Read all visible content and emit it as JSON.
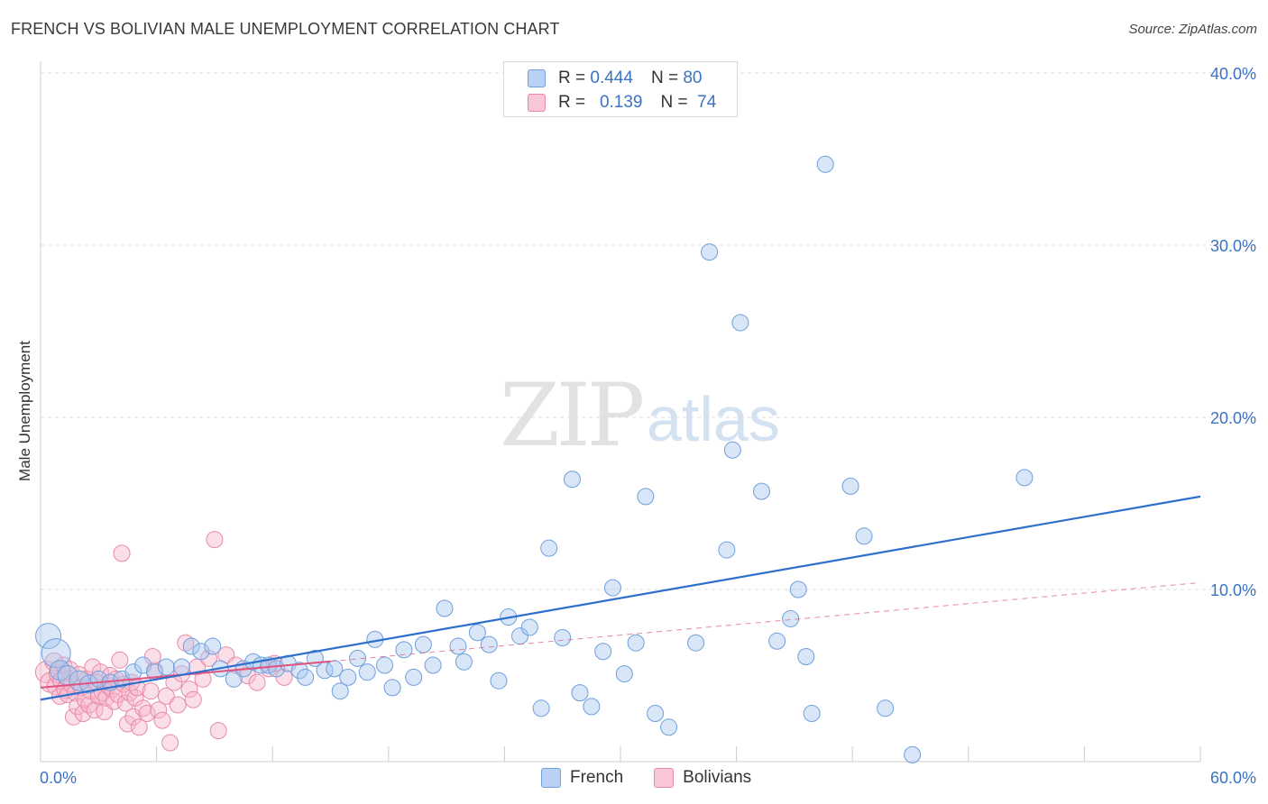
{
  "header": {
    "title": "FRENCH VS BOLIVIAN MALE UNEMPLOYMENT CORRELATION CHART",
    "source": "Source: ZipAtlas.com"
  },
  "watermark": {
    "zip": "ZIP",
    "atlas": "atlas"
  },
  "legend": {
    "french": {
      "r_label": "R =",
      "r_value": "0.444",
      "n_label": "N =",
      "n_value": "80"
    },
    "bolivians": {
      "r_label": "R =",
      "r_value": "0.139",
      "n_label": "N =",
      "n_value": "74"
    }
  },
  "bottom_legend": {
    "french": "French",
    "bolivians": "Bolivians"
  },
  "colors": {
    "french_fill": "#a9c7ef",
    "french_stroke": "#6f9fdc",
    "french_line": "#2f6fcc",
    "bolivian_fill": "#f7b8cb",
    "bolivian_stroke": "#e88aa8",
    "bolivian_line": "#e0557f",
    "grid": "#dddddd",
    "tick_label": "#3b72c4"
  },
  "chart_data": {
    "type": "scatter",
    "title": "FRENCH VS BOLIVIAN MALE UNEMPLOYMENT CORRELATION CHART",
    "xlabel": "",
    "ylabel": "Male Unemployment",
    "xlim": [
      0,
      60
    ],
    "ylim": [
      0,
      40
    ],
    "x_tick_labels": [
      "0.0%",
      "60.0%"
    ],
    "y_ticks": [
      10,
      20,
      30,
      40
    ],
    "y_tick_labels": [
      "10.0%",
      "20.0%",
      "30.0%",
      "40.0%"
    ],
    "series": [
      {
        "name": "French",
        "r": 0.444,
        "n": 80,
        "trend": {
          "x0": 0,
          "y0": 3.6,
          "x1": 60,
          "y1": 15.4
        },
        "points": [
          [
            0.4,
            7.3,
            14
          ],
          [
            0.8,
            6.3,
            16
          ],
          [
            1.0,
            5.3,
            11
          ],
          [
            1.4,
            5.0,
            11
          ],
          [
            2.0,
            4.7,
            11
          ],
          [
            2.5,
            4.5,
            10
          ],
          [
            3.0,
            4.8,
            9
          ],
          [
            3.6,
            4.6,
            9
          ],
          [
            4.2,
            4.8,
            9
          ],
          [
            4.8,
            5.2,
            9
          ],
          [
            5.3,
            5.6,
            9
          ],
          [
            5.9,
            5.2,
            9
          ],
          [
            6.5,
            5.5,
            9
          ],
          [
            7.3,
            5.5,
            9
          ],
          [
            7.8,
            6.7,
            9
          ],
          [
            8.3,
            6.4,
            9
          ],
          [
            8.9,
            6.7,
            9
          ],
          [
            9.3,
            5.4,
            9
          ],
          [
            10.0,
            4.8,
            9
          ],
          [
            10.5,
            5.4,
            9
          ],
          [
            11.0,
            5.8,
            9
          ],
          [
            11.4,
            5.6,
            9
          ],
          [
            11.8,
            5.6,
            9
          ],
          [
            12.2,
            5.4,
            9
          ],
          [
            12.8,
            5.7,
            9
          ],
          [
            13.4,
            5.3,
            9
          ],
          [
            13.7,
            4.9,
            9
          ],
          [
            14.2,
            6.0,
            9
          ],
          [
            14.7,
            5.3,
            9
          ],
          [
            15.2,
            5.4,
            9
          ],
          [
            15.5,
            4.1,
            9
          ],
          [
            15.9,
            4.9,
            9
          ],
          [
            16.4,
            6.0,
            9
          ],
          [
            16.9,
            5.2,
            9
          ],
          [
            17.3,
            7.1,
            9
          ],
          [
            17.8,
            5.6,
            9
          ],
          [
            18.2,
            4.3,
            9
          ],
          [
            18.8,
            6.5,
            9
          ],
          [
            19.3,
            4.9,
            9
          ],
          [
            19.8,
            6.8,
            9
          ],
          [
            20.3,
            5.6,
            9
          ],
          [
            20.9,
            8.9,
            9
          ],
          [
            21.6,
            6.7,
            9
          ],
          [
            21.9,
            5.8,
            9
          ],
          [
            22.6,
            7.5,
            9
          ],
          [
            23.2,
            6.8,
            9
          ],
          [
            23.7,
            4.7,
            9
          ],
          [
            24.2,
            8.4,
            9
          ],
          [
            24.8,
            7.3,
            9
          ],
          [
            25.3,
            7.8,
            9
          ],
          [
            25.9,
            3.1,
            9
          ],
          [
            26.3,
            12.4,
            9
          ],
          [
            27.0,
            7.2,
            9
          ],
          [
            27.5,
            16.4,
            9
          ],
          [
            27.9,
            4.0,
            9
          ],
          [
            28.5,
            3.2,
            9
          ],
          [
            29.1,
            6.4,
            9
          ],
          [
            29.6,
            10.1,
            9
          ],
          [
            30.2,
            5.1,
            9
          ],
          [
            30.8,
            6.9,
            9
          ],
          [
            31.3,
            15.4,
            9
          ],
          [
            31.8,
            2.8,
            9
          ],
          [
            32.5,
            2.0,
            9
          ],
          [
            33.9,
            6.9,
            9
          ],
          [
            34.6,
            29.6,
            9
          ],
          [
            35.5,
            12.3,
            9
          ],
          [
            35.8,
            18.1,
            9
          ],
          [
            36.2,
            25.5,
            9
          ],
          [
            37.3,
            15.7,
            9
          ],
          [
            38.1,
            7.0,
            9
          ],
          [
            38.8,
            8.3,
            9
          ],
          [
            39.2,
            10.0,
            9
          ],
          [
            39.6,
            6.1,
            9
          ],
          [
            39.9,
            2.8,
            9
          ],
          [
            40.6,
            34.7,
            9
          ],
          [
            41.9,
            16.0,
            9
          ],
          [
            42.6,
            13.1,
            9
          ],
          [
            43.7,
            3.1,
            9
          ],
          [
            45.1,
            0.4,
            9
          ],
          [
            50.9,
            16.5,
            9
          ]
        ]
      },
      {
        "name": "Bolivians",
        "r": 0.139,
        "n": 74,
        "trend": {
          "x0": 0,
          "y0": 4.3,
          "x1": 60,
          "y1": 10.4
        },
        "solid_trend_end_x": 15.0,
        "points": [
          [
            0.3,
            5.2,
            12
          ],
          [
            0.5,
            4.6,
            11
          ],
          [
            0.7,
            5.8,
            10
          ],
          [
            0.8,
            4.4,
            10
          ],
          [
            0.9,
            5.1,
            10
          ],
          [
            1.0,
            3.8,
            9
          ],
          [
            1.1,
            4.7,
            10
          ],
          [
            1.2,
            5.6,
            9
          ],
          [
            1.3,
            4.2,
            10
          ],
          [
            1.4,
            3.9,
            9
          ],
          [
            1.5,
            5.3,
            10
          ],
          [
            1.6,
            4.5,
            9
          ],
          [
            1.7,
            2.6,
            9
          ],
          [
            1.8,
            4.0,
            9
          ],
          [
            1.9,
            3.2,
            9
          ],
          [
            2.0,
            5.0,
            10
          ],
          [
            2.1,
            4.3,
            9
          ],
          [
            2.2,
            2.8,
            9
          ],
          [
            2.3,
            3.6,
            9
          ],
          [
            2.4,
            4.8,
            9
          ],
          [
            2.5,
            3.3,
            9
          ],
          [
            2.6,
            4.1,
            9
          ],
          [
            2.7,
            5.5,
            9
          ],
          [
            2.8,
            3.0,
            9
          ],
          [
            2.9,
            4.6,
            9
          ],
          [
            3.0,
            3.8,
            9
          ],
          [
            3.1,
            5.2,
            9
          ],
          [
            3.2,
            4.0,
            9
          ],
          [
            3.3,
            2.9,
            9
          ],
          [
            3.4,
            3.7,
            9
          ],
          [
            3.5,
            4.4,
            9
          ],
          [
            3.6,
            5.0,
            9
          ],
          [
            3.7,
            4.2,
            9
          ],
          [
            3.8,
            3.5,
            9
          ],
          [
            3.9,
            4.8,
            9
          ],
          [
            4.0,
            3.9,
            9
          ],
          [
            4.1,
            5.9,
            9
          ],
          [
            4.2,
            12.1,
            9
          ],
          [
            4.3,
            4.5,
            9
          ],
          [
            4.4,
            3.4,
            9
          ],
          [
            4.5,
            2.2,
            9
          ],
          [
            4.6,
            4.0,
            9
          ],
          [
            4.7,
            4.6,
            9
          ],
          [
            4.8,
            2.6,
            9
          ],
          [
            4.9,
            3.7,
            9
          ],
          [
            5.0,
            4.3,
            9
          ],
          [
            5.1,
            2.0,
            9
          ],
          [
            5.3,
            3.1,
            9
          ],
          [
            5.5,
            2.8,
            9
          ],
          [
            5.7,
            4.1,
            9
          ],
          [
            5.9,
            5.3,
            9
          ],
          [
            6.1,
            3.0,
            9
          ],
          [
            6.3,
            2.4,
            9
          ],
          [
            6.5,
            3.8,
            9
          ],
          [
            6.7,
            1.1,
            9
          ],
          [
            6.9,
            4.6,
            9
          ],
          [
            7.1,
            3.3,
            9
          ],
          [
            7.3,
            5.1,
            9
          ],
          [
            7.5,
            6.9,
            9
          ],
          [
            7.7,
            4.2,
            9
          ],
          [
            7.9,
            3.6,
            9
          ],
          [
            8.1,
            5.5,
            9
          ],
          [
            8.4,
            4.8,
            9
          ],
          [
            8.7,
            6.0,
            9
          ],
          [
            9.0,
            12.9,
            9
          ],
          [
            9.2,
            1.8,
            9
          ],
          [
            9.6,
            6.2,
            9
          ],
          [
            10.1,
            5.6,
            9
          ],
          [
            10.7,
            5.0,
            9
          ],
          [
            11.2,
            4.6,
            9
          ],
          [
            11.8,
            5.4,
            9
          ],
          [
            12.1,
            5.7,
            9
          ],
          [
            12.6,
            4.9,
            9
          ],
          [
            5.8,
            6.1,
            9
          ]
        ]
      }
    ]
  }
}
